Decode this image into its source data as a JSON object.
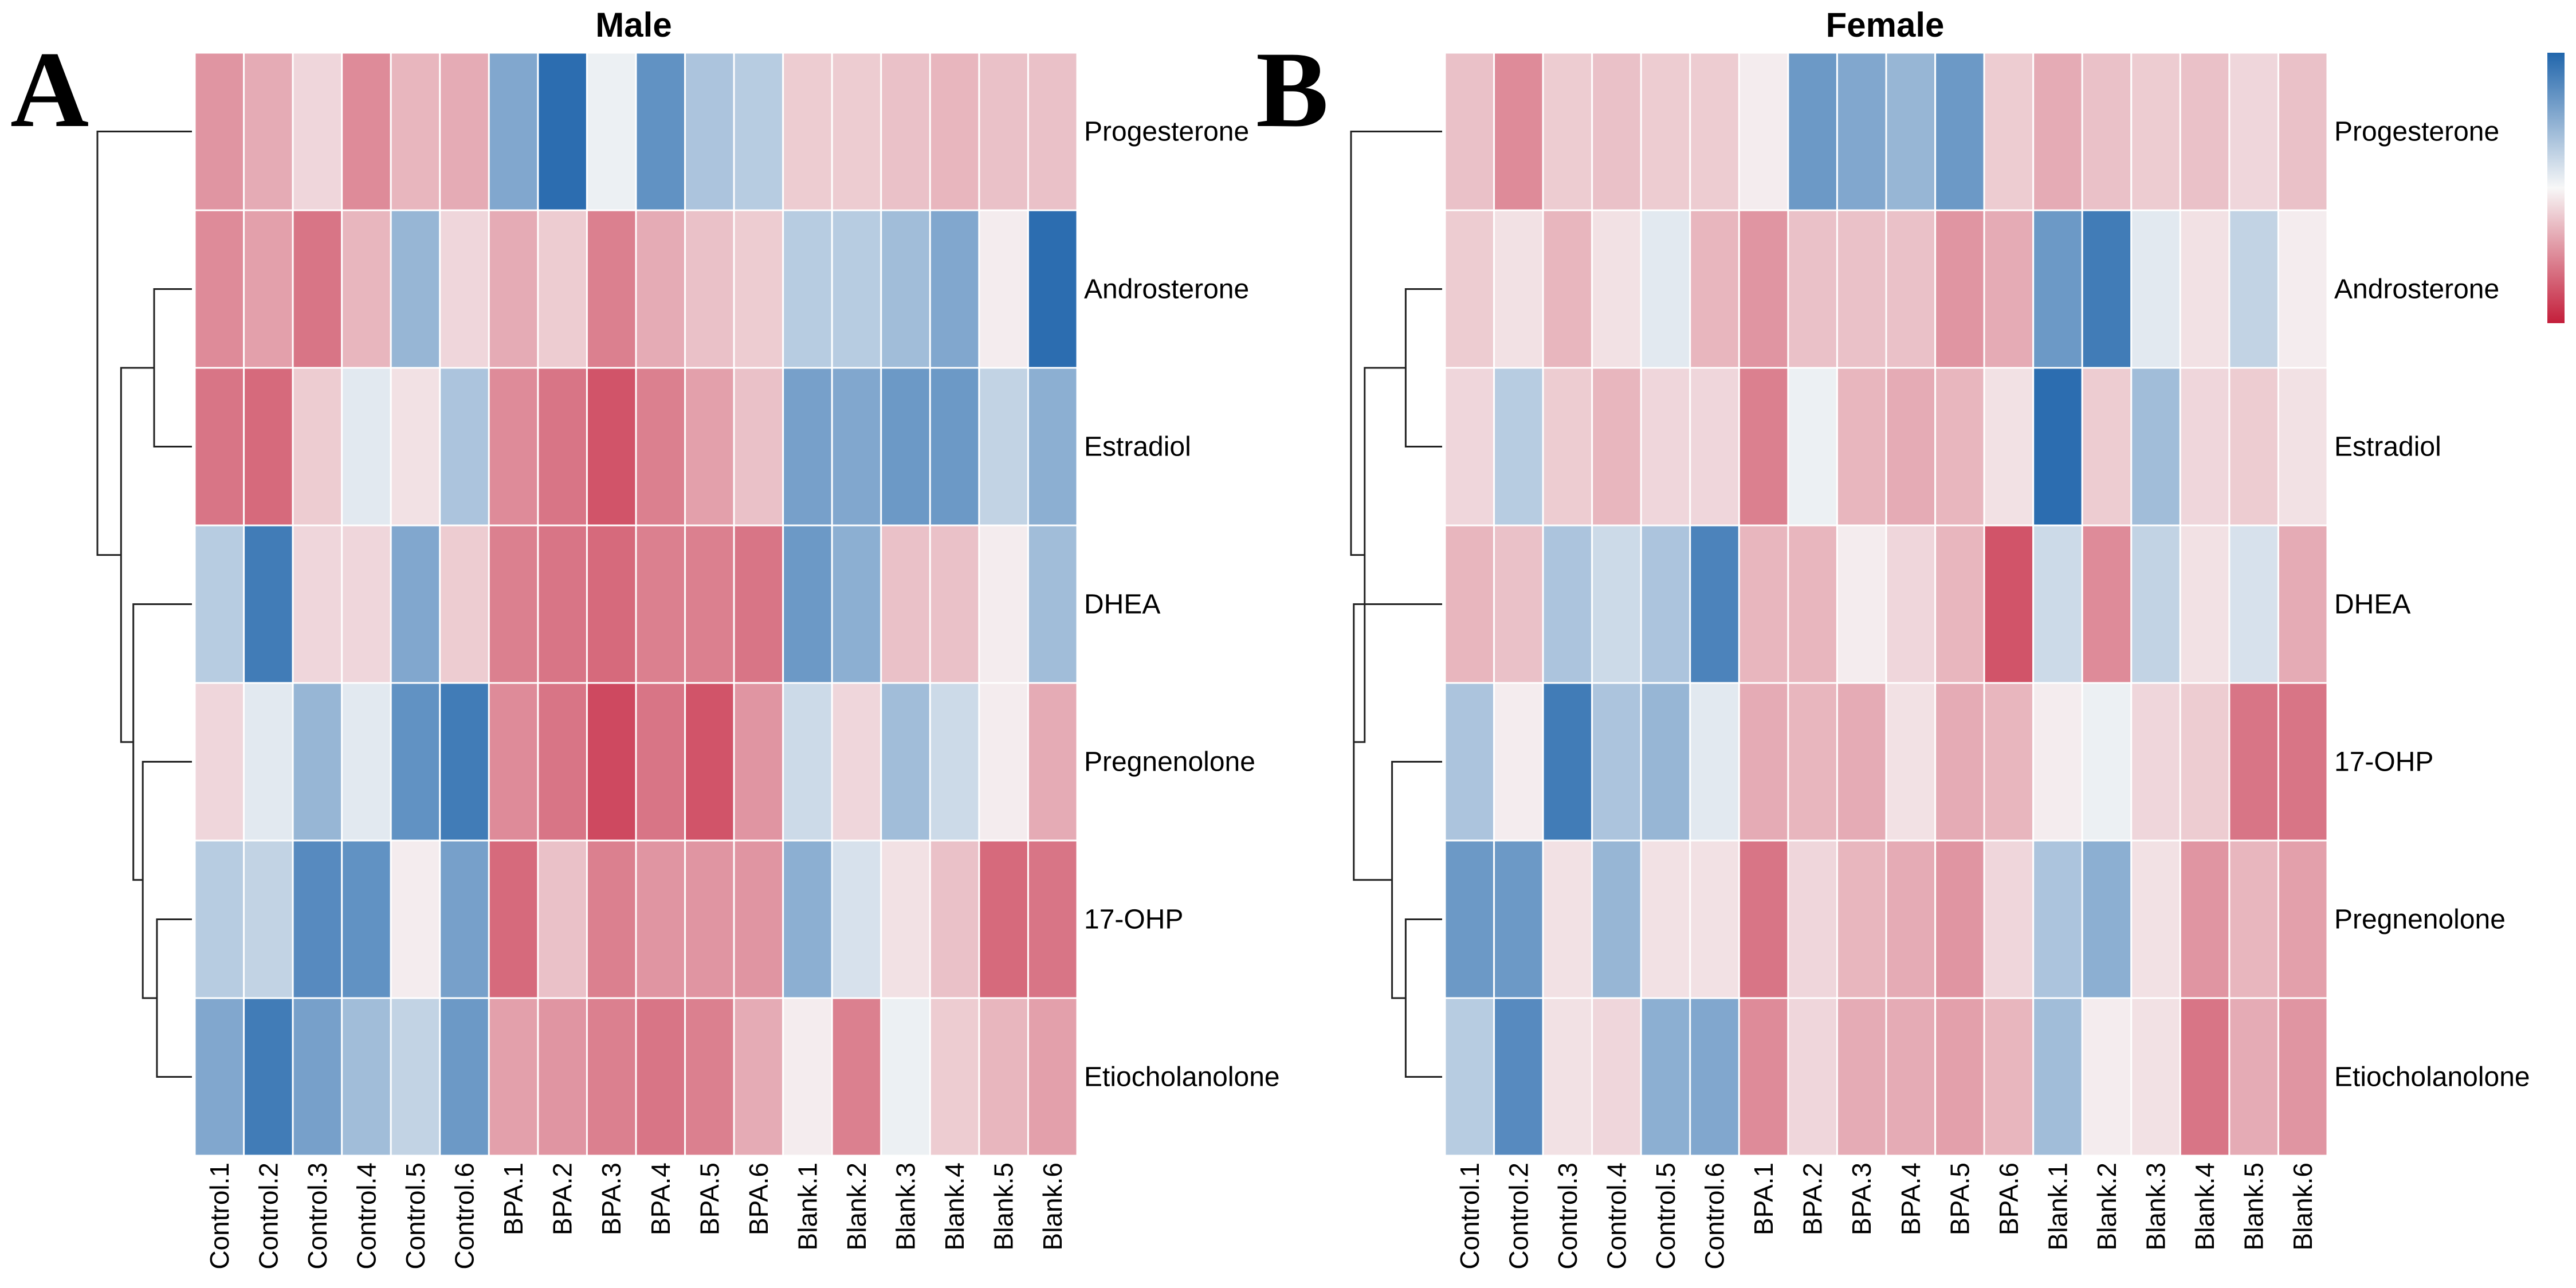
{
  "chart_data": [
    {
      "type": "heatmap",
      "panel_letter": "A",
      "title": "Male",
      "columns": [
        "Control.1",
        "Control.2",
        "Control.3",
        "Control.4",
        "Control.5",
        "Control.6",
        "BPA.1",
        "BPA.2",
        "BPA.3",
        "BPA.4",
        "BPA.5",
        "BPA.6",
        "Blank.1",
        "Blank.2",
        "Blank.3",
        "Blank.4",
        "Blank.5",
        "Blank.6"
      ],
      "rows": [
        "Progesterone",
        "Androsterone",
        "Estradiol",
        "DHEA",
        "Pregnenolone",
        "17-OHP",
        "Etiocholanolone"
      ],
      "color_scale": "relative level, red (low) to white to blue (high), range -1 to 1",
      "values": [
        [
          -0.45,
          -0.35,
          -0.15,
          -0.5,
          -0.3,
          -0.35,
          0.55,
          0.95,
          0.05,
          0.7,
          0.35,
          0.3,
          -0.2,
          -0.2,
          -0.25,
          -0.3,
          -0.25,
          -0.25
        ],
        [
          -0.5,
          -0.4,
          -0.6,
          -0.3,
          0.45,
          -0.15,
          -0.35,
          -0.2,
          -0.55,
          -0.35,
          -0.25,
          -0.2,
          0.3,
          0.3,
          0.4,
          0.55,
          -0.05,
          0.95
        ],
        [
          -0.6,
          -0.65,
          -0.2,
          0.1,
          -0.1,
          0.35,
          -0.5,
          -0.6,
          -0.75,
          -0.55,
          -0.4,
          -0.25,
          0.6,
          0.55,
          0.65,
          0.65,
          0.25,
          0.5
        ],
        [
          0.3,
          0.85,
          -0.15,
          -0.15,
          0.55,
          -0.2,
          -0.55,
          -0.6,
          -0.65,
          -0.55,
          -0.55,
          -0.6,
          0.65,
          0.5,
          -0.25,
          -0.25,
          -0.05,
          0.4
        ],
        [
          -0.15,
          0.1,
          0.45,
          0.1,
          0.7,
          0.85,
          -0.5,
          -0.6,
          -0.8,
          -0.6,
          -0.75,
          -0.45,
          0.2,
          -0.15,
          0.4,
          0.2,
          -0.05,
          -0.35
        ],
        [
          0.3,
          0.25,
          0.75,
          0.7,
          -0.05,
          0.6,
          -0.65,
          -0.25,
          -0.55,
          -0.45,
          -0.45,
          -0.45,
          0.5,
          0.15,
          -0.1,
          -0.25,
          -0.65,
          -0.6
        ],
        [
          0.55,
          0.85,
          0.6,
          0.4,
          0.25,
          0.65,
          -0.4,
          -0.45,
          -0.55,
          -0.6,
          -0.55,
          -0.35,
          -0.05,
          -0.55,
          0.05,
          -0.2,
          -0.3,
          -0.4
        ]
      ]
    },
    {
      "type": "heatmap",
      "panel_letter": "B",
      "title": "Female",
      "columns": [
        "Control.1",
        "Control.2",
        "Control.3",
        "Control.4",
        "Control.5",
        "Control.6",
        "BPA.1",
        "BPA.2",
        "BPA.3",
        "BPA.4",
        "BPA.5",
        "BPA.6",
        "Blank.1",
        "Blank.2",
        "Blank.3",
        "Blank.4",
        "Blank.5",
        "Blank.6"
      ],
      "rows": [
        "Progesterone",
        "Androsterone",
        "Estradiol",
        "DHEA",
        "17-OHP",
        "Pregnenolone",
        "Etiocholanolone"
      ],
      "color_scale": "relative level, red (low) to white to blue (high), range -1 to 1",
      "values": [
        [
          -0.25,
          -0.5,
          -0.2,
          -0.25,
          -0.2,
          -0.2,
          -0.05,
          0.65,
          0.55,
          0.45,
          0.65,
          -0.2,
          -0.35,
          -0.25,
          -0.2,
          -0.25,
          -0.15,
          -0.25
        ],
        [
          -0.2,
          -0.1,
          -0.3,
          -0.1,
          0.1,
          -0.3,
          -0.45,
          -0.25,
          -0.25,
          -0.25,
          -0.45,
          -0.35,
          0.65,
          0.85,
          0.1,
          -0.1,
          0.25,
          -0.05
        ],
        [
          -0.15,
          0.3,
          -0.2,
          -0.3,
          -0.15,
          -0.15,
          -0.55,
          0.05,
          -0.3,
          -0.35,
          -0.3,
          -0.1,
          0.95,
          -0.2,
          0.4,
          -0.15,
          -0.2,
          -0.1
        ],
        [
          -0.3,
          -0.25,
          0.35,
          0.2,
          0.35,
          0.8,
          -0.3,
          -0.3,
          -0.05,
          -0.15,
          -0.3,
          -0.75,
          0.2,
          -0.5,
          0.25,
          -0.1,
          0.15,
          -0.35
        ],
        [
          0.35,
          -0.05,
          0.85,
          0.35,
          0.45,
          0.1,
          -0.35,
          -0.3,
          -0.35,
          -0.1,
          -0.35,
          -0.3,
          -0.05,
          0.05,
          -0.15,
          -0.2,
          -0.6,
          -0.6
        ],
        [
          0.65,
          0.65,
          -0.1,
          0.45,
          -0.1,
          -0.1,
          -0.6,
          -0.15,
          -0.3,
          -0.35,
          -0.45,
          -0.15,
          0.35,
          0.5,
          -0.1,
          -0.45,
          -0.3,
          -0.4
        ],
        [
          0.3,
          0.75,
          -0.1,
          -0.15,
          0.5,
          0.55,
          -0.5,
          -0.15,
          -0.35,
          -0.35,
          -0.4,
          -0.3,
          0.4,
          -0.05,
          -0.1,
          -0.6,
          -0.35,
          -0.45
        ]
      ]
    }
  ],
  "colorbar": {
    "colors": [
      "#c41e3a",
      "#f7f7f7",
      "#2166ac"
    ]
  }
}
